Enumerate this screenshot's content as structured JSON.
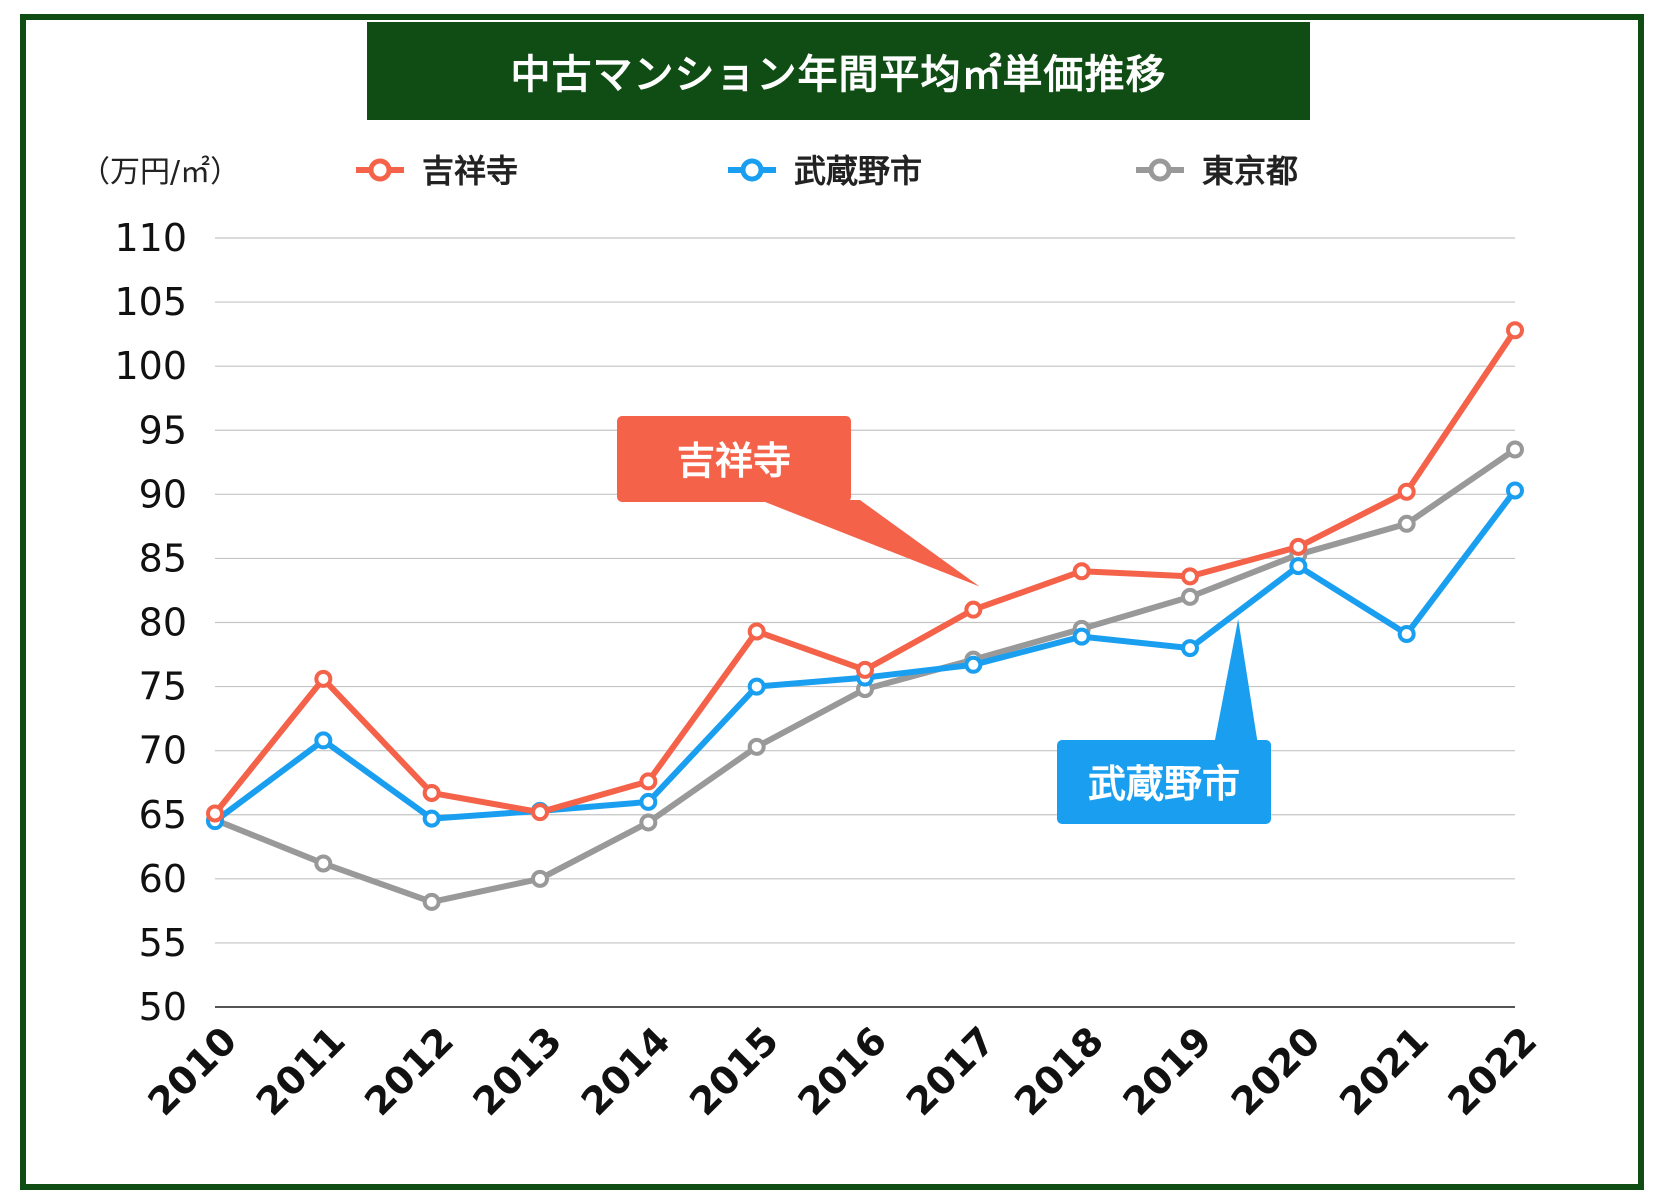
{
  "title": "中古マンション年間平均㎡単価推移",
  "unit_label": "（万円/㎡）",
  "callouts": [
    {
      "label": "吉祥寺",
      "series": "吉祥寺"
    },
    {
      "label": "武蔵野市",
      "series": "武蔵野市"
    }
  ],
  "chart_data": {
    "type": "line",
    "title": "中古マンション年間平均㎡単価推移",
    "ylabel": "（万円/㎡）",
    "xlabel": "",
    "ylim": [
      50,
      110
    ],
    "yticks": [
      50,
      55,
      60,
      65,
      70,
      75,
      80,
      85,
      90,
      95,
      100,
      105,
      110
    ],
    "grid": true,
    "legend_position": "top",
    "categories": [
      "2010",
      "2011",
      "2012",
      "2013",
      "2014",
      "2015",
      "2016",
      "2017",
      "2018",
      "2019",
      "2020",
      "2021",
      "2022"
    ],
    "series": [
      {
        "name": "吉祥寺",
        "color": "#f4624a",
        "values": [
          65.1,
          75.6,
          66.7,
          65.2,
          67.6,
          79.3,
          76.3,
          81.0,
          84.0,
          83.6,
          85.9,
          90.2,
          102.8
        ]
      },
      {
        "name": "武蔵野市",
        "color": "#1a9ff0",
        "values": [
          64.5,
          70.8,
          64.7,
          65.3,
          66.0,
          75.0,
          75.7,
          76.7,
          78.9,
          78.0,
          84.4,
          79.1,
          90.3
        ]
      },
      {
        "name": "東京都",
        "color": "#999999",
        "values": [
          64.6,
          61.2,
          58.2,
          60.0,
          64.4,
          70.3,
          74.8,
          77.1,
          79.5,
          82.0,
          85.3,
          87.7,
          93.5
        ]
      }
    ]
  }
}
